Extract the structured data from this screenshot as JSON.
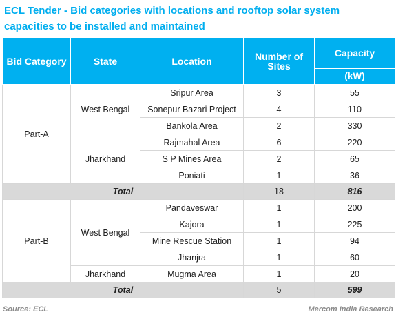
{
  "title": "ECL Tender - Bid categories with locations and rooftop solar system capacities to be installed and maintained",
  "headers": {
    "bid_category": "Bid Category",
    "state": "State",
    "location": "Location",
    "number_of_sites": "Number of Sites",
    "capacity": "Capacity",
    "capacity_unit": "(kW)"
  },
  "parts": [
    {
      "name": "Part-A",
      "states": [
        {
          "name": "West Bengal",
          "rows": [
            {
              "location": "Sripur Area",
              "sites": "3",
              "capacity": "55"
            },
            {
              "location": "Sonepur Bazari Project",
              "sites": "4",
              "capacity": "110"
            },
            {
              "location": "Bankola Area",
              "sites": "2",
              "capacity": "330"
            }
          ]
        },
        {
          "name": "Jharkhand",
          "rows": [
            {
              "location": "Rajmahal Area",
              "sites": "6",
              "capacity": "220"
            },
            {
              "location": "S P Mines Area",
              "sites": "2",
              "capacity": "65"
            },
            {
              "location": "Poniati",
              "sites": "1",
              "capacity": "36"
            }
          ]
        }
      ],
      "total": {
        "label": "Total",
        "sites": "18",
        "capacity": "816"
      }
    },
    {
      "name": "Part-B",
      "states": [
        {
          "name": "West Bengal",
          "rows": [
            {
              "location": "Pandaveswar",
              "sites": "1",
              "capacity": "200"
            },
            {
              "location": "Kajora",
              "sites": "1",
              "capacity": "225"
            },
            {
              "location": "Mine Rescue Station",
              "sites": "1",
              "capacity": "94"
            },
            {
              "location": "Jhanjra",
              "sites": "1",
              "capacity": "60"
            }
          ]
        },
        {
          "name": "Jharkhand",
          "rows": [
            {
              "location": "Mugma Area",
              "sites": "1",
              "capacity": "20"
            }
          ]
        }
      ],
      "total": {
        "label": "Total",
        "sites": "5",
        "capacity": "599"
      }
    }
  ],
  "footer": {
    "source": "Source: ECL",
    "credit": "Mercom India Research"
  },
  "colors": {
    "accent": "#00b0f0",
    "title": "#00aeef",
    "total_row": "#d9d9d9"
  }
}
